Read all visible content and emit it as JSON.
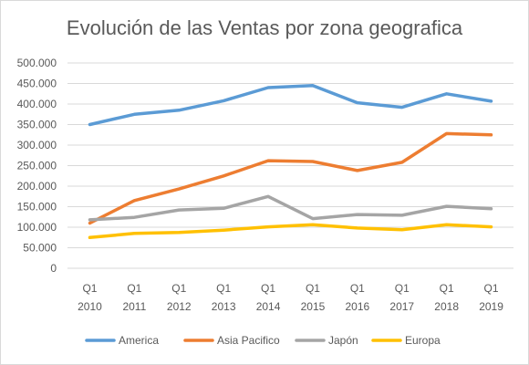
{
  "chart_data": {
    "type": "line",
    "title": "Evolución de las Ventas por zona geografica",
    "xlabel": "",
    "ylabel": "",
    "categories": [
      [
        "Q1",
        "2010"
      ],
      [
        "Q1",
        "2011"
      ],
      [
        "Q1",
        "2012"
      ],
      [
        "Q1",
        "2013"
      ],
      [
        "Q1",
        "2014"
      ],
      [
        "Q1",
        "2015"
      ],
      [
        "Q1",
        "2016"
      ],
      [
        "Q1",
        "2017"
      ],
      [
        "Q1",
        "2018"
      ],
      [
        "Q1",
        "2019"
      ]
    ],
    "ylim": [
      0,
      500000
    ],
    "yticks": [
      0,
      50000,
      100000,
      150000,
      200000,
      250000,
      300000,
      350000,
      400000,
      450000,
      500000
    ],
    "ytick_labels": [
      "0",
      "50.000",
      "100.000",
      "150.000",
      "200.000",
      "250.000",
      "300.000",
      "350.000",
      "400.000",
      "450.000",
      "500.000"
    ],
    "grid": true,
    "legend_position": "bottom",
    "series": [
      {
        "name": "America",
        "color": "#5B9BD5",
        "values": [
          350000,
          375000,
          385000,
          408000,
          440000,
          445000,
          403000,
          392000,
          425000,
          407000
        ]
      },
      {
        "name": "Asia Pacifico",
        "color": "#ED7D31",
        "values": [
          110000,
          165000,
          193000,
          225000,
          262000,
          260000,
          238000,
          258000,
          328000,
          325000
        ]
      },
      {
        "name": "Japón",
        "color": "#A5A5A5",
        "values": [
          118000,
          124000,
          142000,
          146000,
          175000,
          121000,
          131000,
          129000,
          151000,
          145000
        ]
      },
      {
        "name": "Europa",
        "color": "#FFC000",
        "values": [
          75000,
          85000,
          87000,
          93000,
          101000,
          106000,
          98000,
          94000,
          106000,
          101000
        ]
      }
    ]
  }
}
